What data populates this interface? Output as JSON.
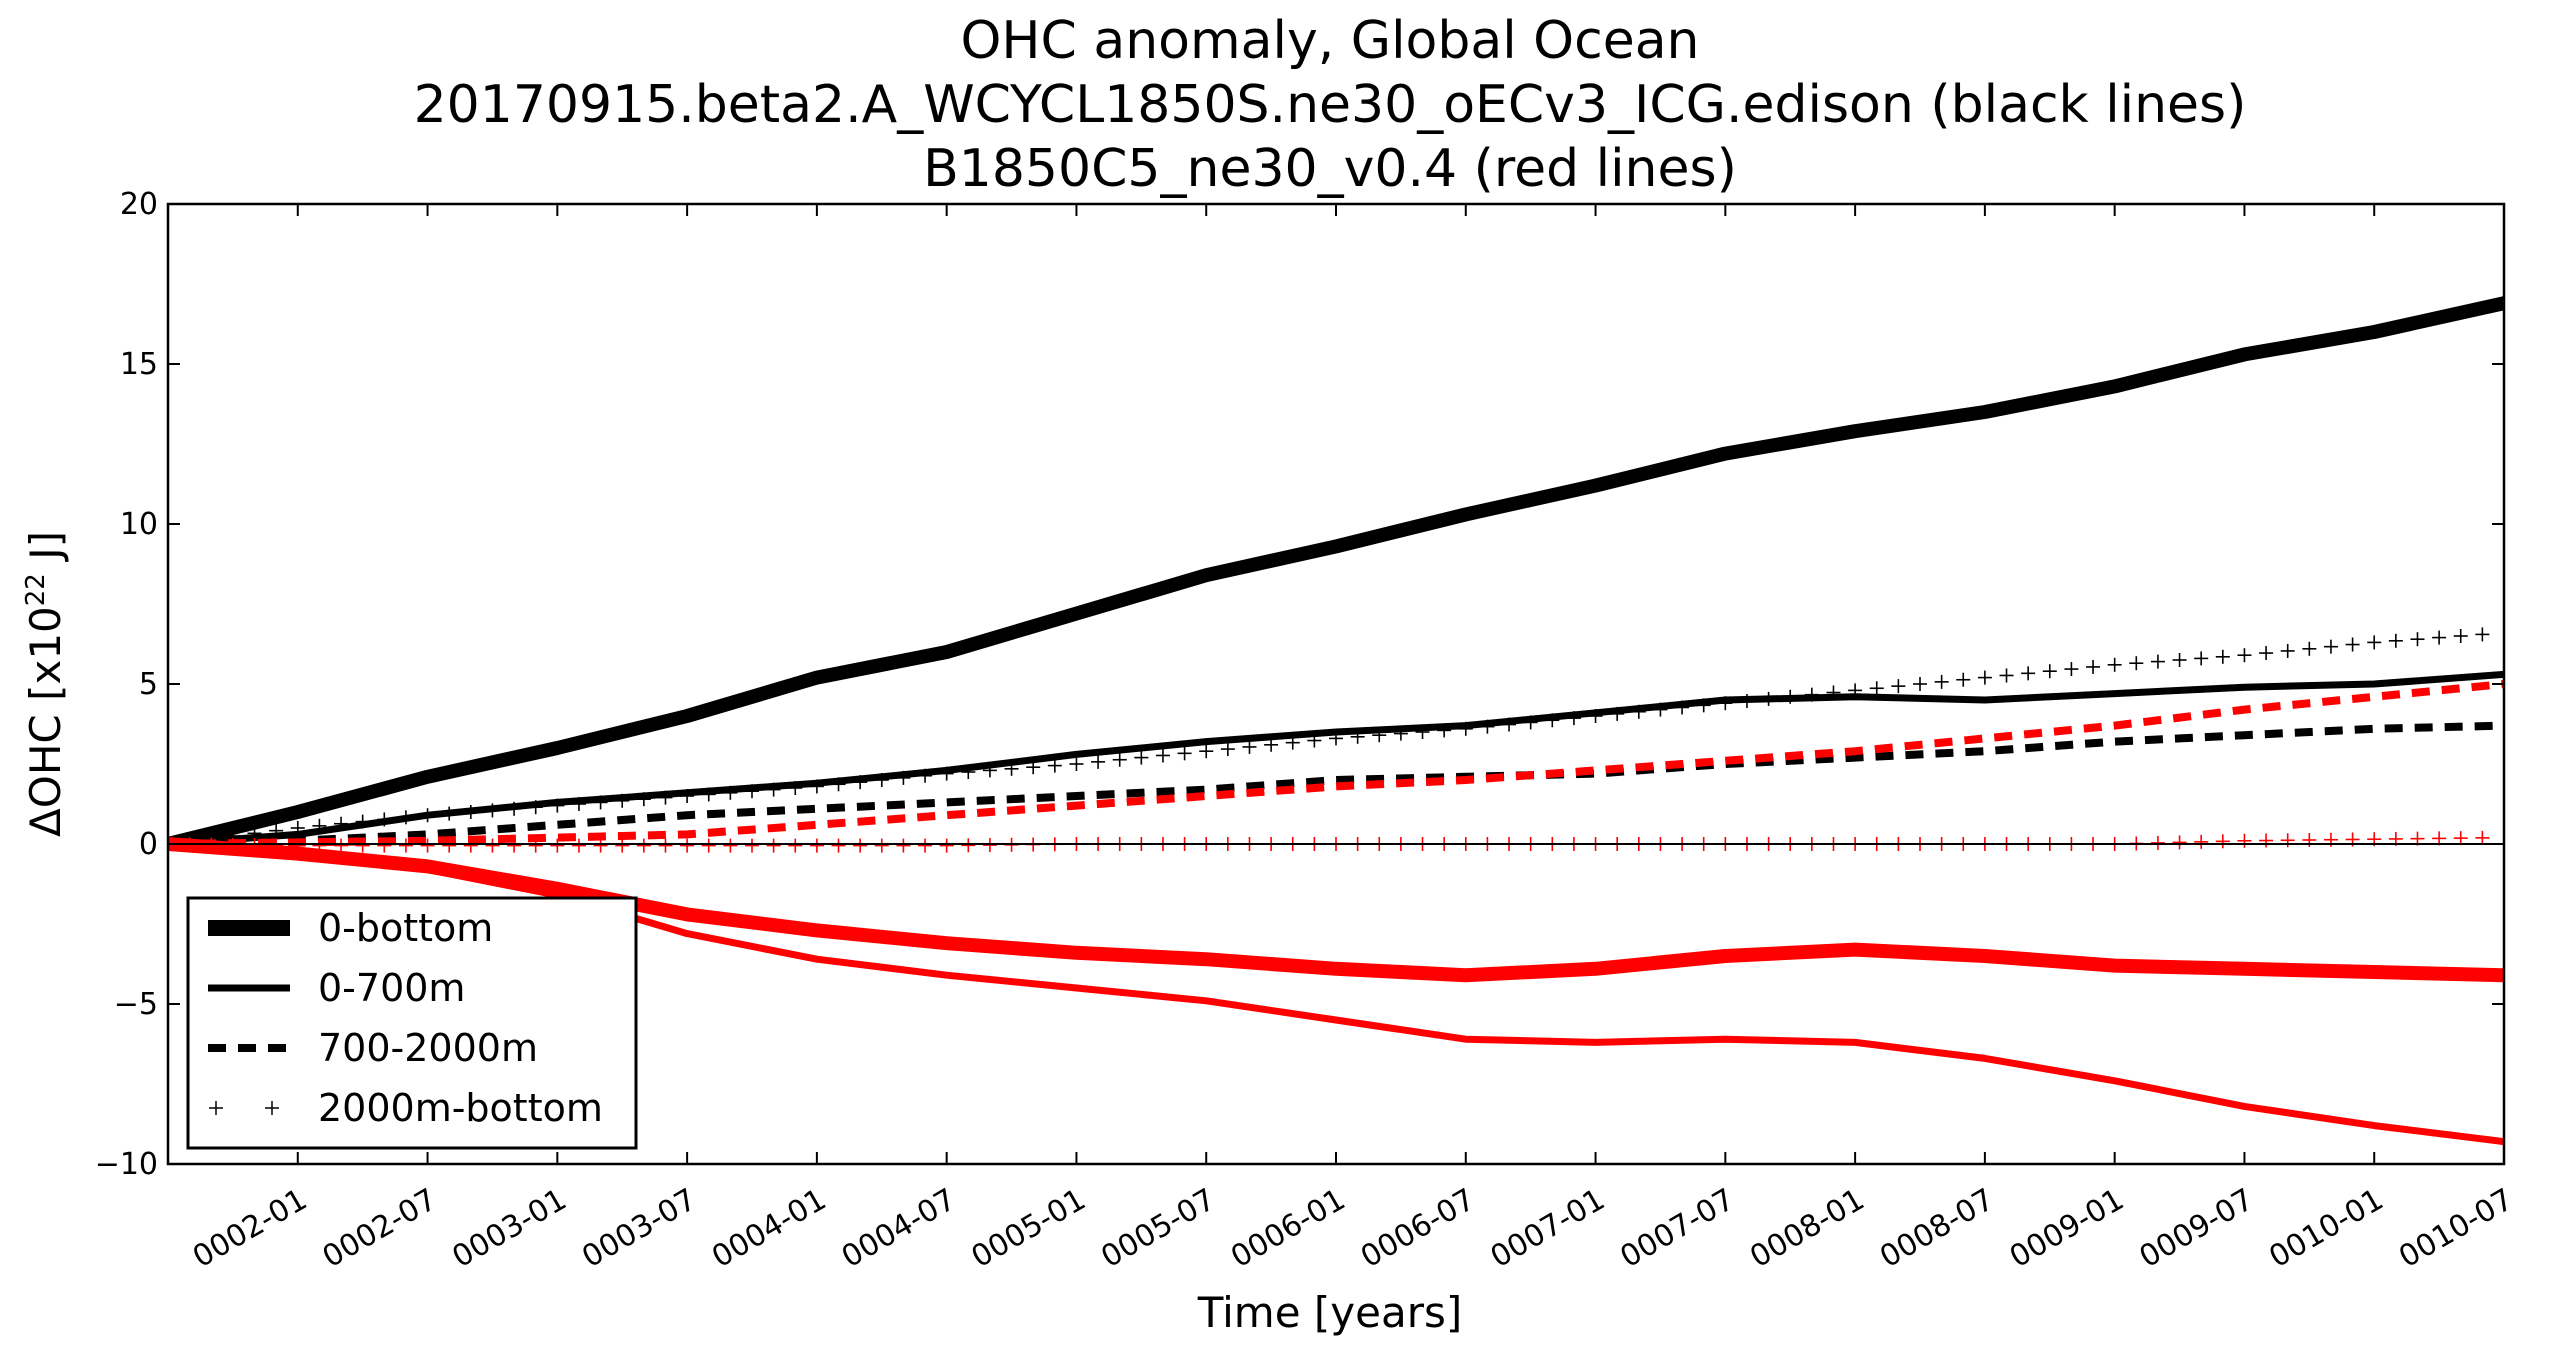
{
  "chart_data": {
    "type": "line",
    "title_lines": [
      "OHC anomaly, Global Ocean",
      "20170915.beta2.A_WCYCL1850S.ne30_oECv3_ICG.edison (black lines)",
      "B1850C5_ne30_v0.4 (red lines)"
    ],
    "xlabel": "Time [years]",
    "ylabel": "ΔOHC  [x10",
    "ylabel_sup": "22",
    "ylabel_tail": " J]",
    "x_range": [
      "0001-07",
      "0010-07"
    ],
    "x_ticks": [
      "0002-01",
      "0002-07",
      "0003-01",
      "0003-07",
      "0004-01",
      "0004-07",
      "0005-01",
      "0005-07",
      "0006-01",
      "0006-07",
      "0007-01",
      "0007-07",
      "0008-01",
      "0008-07",
      "0009-01",
      "0009-07",
      "0010-01",
      "0010-07"
    ],
    "ylim": [
      -10,
      20
    ],
    "y_ticks": [
      -10,
      -5,
      0,
      5,
      10,
      15,
      20
    ],
    "y_tick_labels": [
      "−10",
      "−5",
      "0",
      "5",
      "10",
      "15",
      "20"
    ],
    "grid": false,
    "zero_line": true,
    "legend_position": "lower-left",
    "legend": [
      {
        "label": "0-bottom",
        "style": "thick-solid"
      },
      {
        "label": "0-700m",
        "style": "solid"
      },
      {
        "label": "700-2000m",
        "style": "dashed"
      },
      {
        "label": "2000m-bottom",
        "style": "plus-markers"
      }
    ],
    "colors": {
      "black_run": "#000000",
      "red_run": "#ff0000"
    },
    "x": [
      "0001-07",
      "0002-01",
      "0002-07",
      "0003-01",
      "0003-07",
      "0004-01",
      "0004-07",
      "0005-01",
      "0005-07",
      "0006-01",
      "0006-07",
      "0007-01",
      "0007-07",
      "0008-01",
      "0008-07",
      "0009-01",
      "0009-07",
      "0010-01",
      "0010-07"
    ],
    "series": [
      {
        "name": "0-bottom",
        "run": "black",
        "style": "thick-solid",
        "values": [
          0.0,
          1.0,
          2.1,
          3.0,
          4.0,
          5.2,
          6.0,
          7.2,
          8.4,
          9.3,
          10.3,
          11.2,
          12.2,
          12.9,
          13.5,
          14.3,
          15.3,
          16.0,
          16.9
        ]
      },
      {
        "name": "0-700m",
        "run": "black",
        "style": "solid",
        "values": [
          0.0,
          0.3,
          0.9,
          1.3,
          1.6,
          1.9,
          2.3,
          2.8,
          3.2,
          3.5,
          3.7,
          4.1,
          4.5,
          4.6,
          4.5,
          4.7,
          4.9,
          5.0,
          5.3
        ]
      },
      {
        "name": "700-2000m",
        "run": "black",
        "style": "dashed",
        "values": [
          0.0,
          0.1,
          0.3,
          0.6,
          0.9,
          1.1,
          1.3,
          1.5,
          1.7,
          2.0,
          2.1,
          2.2,
          2.5,
          2.7,
          2.9,
          3.2,
          3.4,
          3.6,
          3.7
        ]
      },
      {
        "name": "2000m-bottom",
        "run": "black",
        "style": "plus-markers",
        "values": [
          0.0,
          0.5,
          0.9,
          1.2,
          1.5,
          1.8,
          2.2,
          2.5,
          2.9,
          3.3,
          3.6,
          4.0,
          4.4,
          4.8,
          5.2,
          5.6,
          5.9,
          6.3,
          6.6
        ]
      },
      {
        "name": "0-bottom",
        "run": "red",
        "style": "thick-solid",
        "values": [
          0.0,
          -0.3,
          -0.7,
          -1.4,
          -2.2,
          -2.7,
          -3.1,
          -3.4,
          -3.6,
          -3.9,
          -4.1,
          -3.9,
          -3.5,
          -3.3,
          -3.5,
          -3.8,
          -3.9,
          -4.0,
          -4.1
        ]
      },
      {
        "name": "0-700m",
        "run": "red",
        "style": "solid",
        "values": [
          0.0,
          -0.3,
          -0.8,
          -1.6,
          -2.8,
          -3.6,
          -4.1,
          -4.5,
          -4.9,
          -5.5,
          -6.1,
          -6.2,
          -6.1,
          -6.2,
          -6.7,
          -7.4,
          -8.2,
          -8.8,
          -9.3
        ]
      },
      {
        "name": "700-2000m",
        "run": "red",
        "style": "dashed",
        "values": [
          0.0,
          0.05,
          0.1,
          0.2,
          0.3,
          0.6,
          0.9,
          1.2,
          1.5,
          1.8,
          2.0,
          2.3,
          2.6,
          2.9,
          3.3,
          3.7,
          4.2,
          4.6,
          5.0
        ]
      },
      {
        "name": "2000m-bottom",
        "run": "red",
        "style": "plus-markers",
        "values": [
          0.0,
          -0.05,
          -0.05,
          -0.05,
          -0.05,
          -0.05,
          -0.05,
          0.0,
          0.0,
          0.0,
          0.0,
          0.0,
          0.0,
          0.0,
          0.0,
          0.0,
          0.1,
          0.15,
          0.2
        ]
      }
    ]
  }
}
